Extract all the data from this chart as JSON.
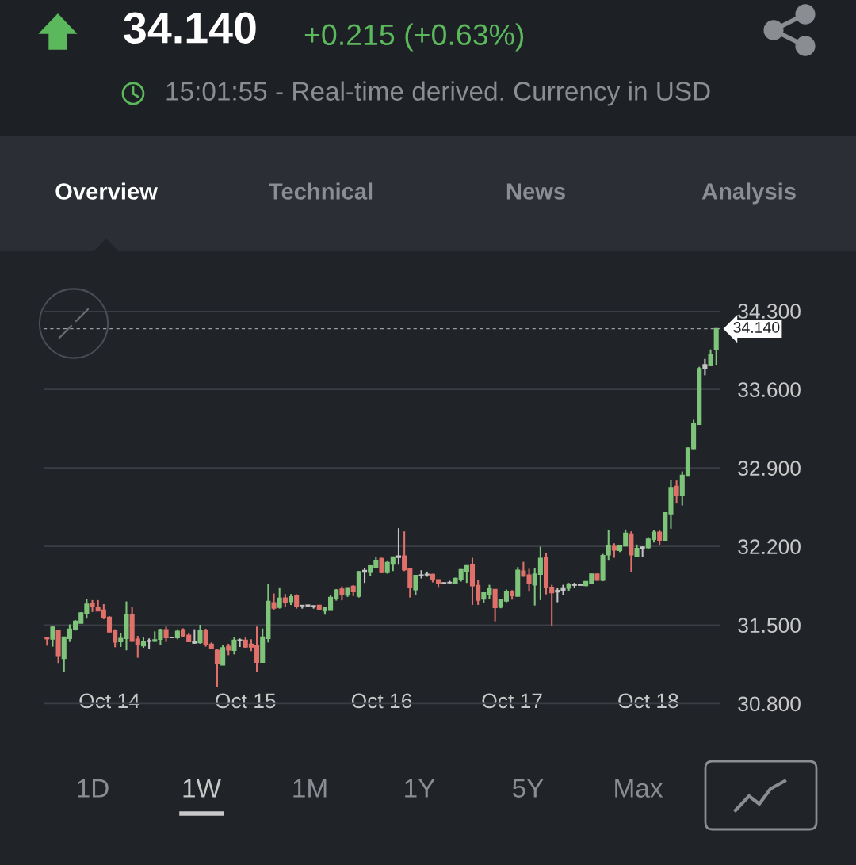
{
  "chart_data": {
    "type": "candlestick",
    "title": "34.140",
    "subtitle": "+0.215 (+0.63%)",
    "annotations": [
      "15:01:55 - Real-time derived. Currency in USD",
      "Overview",
      "Technical",
      "News",
      "Analysis",
      "1D",
      "1W",
      "1M",
      "1Y",
      "5Y",
      "Max"
    ],
    "categories": [
      null,
      null,
      null,
      null,
      null,
      null,
      null,
      null,
      null,
      null,
      null,
      "Oct 14",
      null,
      null,
      null,
      null,
      null,
      null,
      null,
      null,
      null,
      null,
      null,
      null,
      null,
      null,
      null,
      null,
      null,
      null,
      null,
      null,
      null,
      null,
      null,
      "Oct 15",
      null,
      null,
      null,
      null,
      null,
      null,
      null,
      null,
      null,
      null,
      null,
      null,
      null,
      null,
      null,
      null,
      null,
      null,
      null,
      null,
      null,
      null,
      null,
      "Oct 16",
      null,
      null,
      null,
      null,
      null,
      null,
      null,
      null,
      null,
      null,
      null,
      null,
      null,
      null,
      null,
      null,
      null,
      null,
      null,
      null,
      null,
      null,
      "Oct 17",
      null,
      null,
      null,
      null,
      null,
      null,
      null,
      null,
      null,
      null,
      null,
      null,
      null,
      null,
      null,
      null,
      null,
      null,
      null,
      null,
      null,
      null,
      null,
      "Oct 18",
      null,
      null,
      null,
      null,
      null,
      null,
      null,
      null,
      null,
      null,
      null,
      null
    ],
    "ohlc": [
      [
        31.384,
        31.392,
        31.316,
        31.378
      ],
      [
        31.375,
        31.491,
        31.307,
        31.481
      ],
      [
        31.451,
        31.455,
        31.161,
        31.222
      ],
      [
        31.203,
        31.395,
        31.085,
        31.392
      ],
      [
        31.38,
        31.505,
        31.349,
        31.462
      ],
      [
        31.458,
        31.545,
        31.45,
        31.533
      ],
      [
        31.517,
        31.615,
        31.515,
        31.608
      ],
      [
        31.604,
        31.733,
        31.557,
        31.686
      ],
      [
        31.691,
        31.722,
        31.616,
        31.663
      ],
      [
        31.658,
        31.722,
        31.622,
        31.627
      ],
      [
        31.632,
        31.686,
        31.552,
        31.568
      ],
      [
        31.568,
        31.58,
        31.434,
        31.439
      ],
      [
        31.446,
        31.462,
        31.302,
        31.349
      ],
      [
        31.352,
        31.427,
        31.304,
        31.38
      ],
      [
        31.38,
        31.71,
        31.274,
        31.592
      ],
      [
        31.592,
        31.663,
        31.35,
        31.356
      ],
      [
        31.373,
        31.403,
        31.208,
        31.326
      ],
      [
        31.316,
        31.392,
        31.297,
        31.354
      ],
      [
        31.355,
        31.38,
        31.286,
        31.36
      ],
      [
        31.356,
        31.443,
        31.349,
        31.368
      ],
      [
        31.373,
        31.467,
        31.321,
        31.458
      ],
      [
        31.458,
        31.486,
        31.349,
        31.387
      ],
      [
        31.39,
        31.392,
        31.387,
        31.388
      ],
      [
        31.387,
        31.462,
        31.373,
        31.443
      ],
      [
        31.458,
        31.47,
        31.39,
        31.403
      ],
      [
        31.408,
        31.427,
        31.349,
        31.352
      ],
      [
        31.34,
        31.462,
        31.333,
        31.349
      ],
      [
        31.344,
        31.502,
        31.333,
        31.448
      ],
      [
        31.45,
        31.467,
        31.307,
        31.326
      ],
      [
        31.328,
        31.345,
        31.285,
        31.29
      ],
      [
        31.274,
        31.285,
        30.948,
        31.156
      ],
      [
        31.144,
        31.321,
        31.14,
        31.297
      ],
      [
        31.309,
        31.333,
        31.231,
        31.278
      ],
      [
        31.274,
        31.392,
        31.238,
        31.363
      ],
      [
        31.365,
        31.38,
        31.304,
        31.366
      ],
      [
        31.363,
        31.392,
        31.297,
        31.304
      ],
      [
        31.328,
        31.373,
        31.267,
        31.304
      ],
      [
        31.314,
        31.486,
        31.085,
        31.168
      ],
      [
        31.168,
        31.469,
        31.165,
        31.392
      ],
      [
        31.38,
        31.868,
        31.344,
        31.71
      ],
      [
        31.698,
        31.781,
        31.632,
        31.651
      ],
      [
        31.658,
        31.835,
        31.646,
        31.738
      ],
      [
        31.74,
        31.776,
        31.66,
        31.705
      ],
      [
        31.71,
        31.776,
        31.678,
        31.75
      ],
      [
        31.764,
        31.774,
        31.646,
        31.663
      ],
      [
        31.674,
        31.675,
        31.646,
        31.672
      ],
      [
        31.677,
        31.68,
        31.665,
        31.671
      ],
      [
        31.67,
        31.675,
        31.646,
        31.668
      ],
      [
        31.674,
        31.68,
        31.635,
        31.639
      ],
      [
        31.627,
        31.66,
        31.592,
        31.656
      ],
      [
        31.632,
        31.769,
        31.627,
        31.745
      ],
      [
        31.74,
        31.82,
        31.717,
        31.811
      ],
      [
        31.82,
        31.844,
        31.72,
        31.773
      ],
      [
        31.768,
        31.835,
        31.75,
        31.832
      ],
      [
        31.844,
        31.856,
        31.757,
        31.797
      ],
      [
        31.757,
        31.98,
        31.745,
        31.974
      ],
      [
        31.972,
        32.009,
        31.875,
        31.986
      ],
      [
        31.97,
        32.04,
        31.938,
        32.028
      ],
      [
        32.016,
        32.108,
        32.009,
        32.075
      ],
      [
        32.092,
        32.1,
        31.962,
        31.969
      ],
      [
        31.969,
        32.075,
        31.957,
        32.056
      ],
      [
        32.05,
        32.11,
        31.981,
        32.106
      ],
      [
        32.103,
        32.363,
        32.044,
        32.115
      ],
      [
        32.115,
        32.334,
        31.98,
        31.993
      ],
      [
        32.004,
        32.009,
        31.745,
        31.839
      ],
      [
        31.816,
        31.946,
        31.769,
        31.941
      ],
      [
        31.94,
        31.988,
        31.915,
        31.945
      ],
      [
        31.948,
        31.976,
        31.93,
        31.952
      ],
      [
        31.95,
        31.957,
        31.88,
        31.903
      ],
      [
        31.903,
        31.905,
        31.839,
        31.87
      ],
      [
        31.876,
        31.879,
        31.868,
        31.87
      ],
      [
        31.877,
        31.894,
        31.863,
        31.879
      ],
      [
        31.875,
        31.922,
        31.87,
        31.915
      ],
      [
        31.91,
        31.998,
        31.887,
        31.993
      ],
      [
        31.98,
        32.04,
        31.875,
        32.035
      ],
      [
        32.04,
        32.099,
        31.679,
        31.851
      ],
      [
        31.851,
        31.898,
        31.679,
        31.722
      ],
      [
        31.733,
        31.792,
        31.698,
        31.785
      ],
      [
        31.773,
        31.858,
        31.733,
        31.821
      ],
      [
        31.816,
        31.82,
        31.533,
        31.656
      ],
      [
        31.66,
        31.733,
        31.649,
        31.729
      ],
      [
        31.715,
        31.816,
        31.703,
        31.792
      ],
      [
        31.792,
        31.811,
        31.726,
        31.762
      ],
      [
        31.757,
        32.016,
        31.755,
        31.988
      ],
      [
        31.98,
        32.063,
        31.929,
        31.938
      ],
      [
        31.945,
        32.0,
        31.797,
        31.868
      ],
      [
        31.858,
        32.009,
        31.674,
        31.953
      ],
      [
        31.953,
        32.198,
        31.722,
        32.094
      ],
      [
        32.099,
        32.141,
        31.773,
        31.835
      ],
      [
        31.835,
        31.858,
        31.491,
        31.788
      ],
      [
        31.795,
        31.83,
        31.703,
        31.807
      ],
      [
        31.81,
        31.858,
        31.77,
        31.83
      ],
      [
        31.83,
        31.875,
        31.8,
        31.856
      ],
      [
        31.855,
        31.877,
        31.83,
        31.858
      ],
      [
        31.861,
        31.864,
        31.853,
        31.855
      ],
      [
        31.853,
        31.891,
        31.846,
        31.887
      ],
      [
        31.875,
        31.957,
        31.868,
        31.953
      ],
      [
        31.953,
        31.957,
        31.895,
        31.9
      ],
      [
        31.9,
        32.134,
        31.89,
        32.118
      ],
      [
        32.127,
        32.346,
        32.08,
        32.205
      ],
      [
        32.2,
        32.228,
        32.099,
        32.169
      ],
      [
        32.165,
        32.216,
        32.15,
        32.209
      ],
      [
        32.205,
        32.351,
        32.2,
        32.318
      ],
      [
        32.311,
        32.335,
        31.969,
        32.127
      ],
      [
        32.11,
        32.217,
        32.105,
        32.181
      ],
      [
        32.18,
        32.198,
        32.103,
        32.193
      ],
      [
        32.19,
        32.283,
        32.181,
        32.264
      ],
      [
        32.264,
        32.346,
        32.235,
        32.327
      ],
      [
        32.327,
        32.346,
        32.209,
        32.257
      ],
      [
        32.257,
        32.504,
        32.252,
        32.499
      ],
      [
        32.492,
        32.794,
        32.358,
        32.723
      ],
      [
        32.735,
        32.787,
        32.582,
        32.653
      ],
      [
        32.653,
        32.869,
        32.565,
        32.834
      ],
      [
        32.834,
        33.08,
        32.83,
        33.077
      ],
      [
        33.073,
        33.329,
        33.066,
        33.294
      ],
      [
        33.289,
        33.8,
        33.282,
        33.784
      ],
      [
        33.79,
        33.871,
        33.725,
        33.819
      ],
      [
        33.814,
        33.956,
        33.81,
        33.909
      ],
      [
        33.954,
        34.145,
        33.819,
        34.14
      ]
    ],
    "colors": [
      "#e0706a",
      "#7ec47a",
      "#e0706a",
      "#7ec47a",
      "#7ec47a",
      "#7ec47a",
      "#7ec47a",
      "#7ec47a",
      "#e0706a",
      "#e0706a",
      "#e0706a",
      "#e0706a",
      "#e0706a",
      "#7ec47a",
      "#7ec47a",
      "#e0706a",
      "#e0706a",
      "#7ec47a",
      "#c4c4c4",
      "#7ec47a",
      "#7ec47a",
      "#e0706a",
      "#c4c4c4",
      "#7ec47a",
      "#e0706a",
      "#e0706a",
      "#c4c4c4",
      "#7ec47a",
      "#e0706a",
      "#e0706a",
      "#e0706a",
      "#7ec47a",
      "#e0706a",
      "#7ec47a",
      "#c4c4c4",
      "#e0706a",
      "#e0706a",
      "#e0706a",
      "#7ec47a",
      "#7ec47a",
      "#e0706a",
      "#7ec47a",
      "#e0706a",
      "#7ec47a",
      "#e0706a",
      "#c4c4c4",
      "#c4c4c4",
      "#c4c4c4",
      "#e0706a",
      "#7ec47a",
      "#7ec47a",
      "#7ec47a",
      "#e0706a",
      "#7ec47a",
      "#e0706a",
      "#7ec47a",
      "#c4c4c4",
      "#7ec47a",
      "#7ec47a",
      "#e0706a",
      "#7ec47a",
      "#7ec47a",
      "#c4c4c4",
      "#e0706a",
      "#e0706a",
      "#7ec47a",
      "#c4c4c4",
      "#c4c4c4",
      "#e0706a",
      "#e0706a",
      "#c4c4c4",
      "#c4c4c4",
      "#7ec47a",
      "#7ec47a",
      "#7ec47a",
      "#e0706a",
      "#e0706a",
      "#7ec47a",
      "#7ec47a",
      "#e0706a",
      "#7ec47a",
      "#7ec47a",
      "#e0706a",
      "#7ec47a",
      "#e0706a",
      "#e0706a",
      "#7ec47a",
      "#7ec47a",
      "#e0706a",
      "#e0706a",
      "#c4c4c4",
      "#c4c4c4",
      "#7ec47a",
      "#c4c4c4",
      "#c4c4c4",
      "#7ec47a",
      "#7ec47a",
      "#e0706a",
      "#7ec47a",
      "#7ec47a",
      "#e0706a",
      "#7ec47a",
      "#7ec47a",
      "#e0706a",
      "#7ec47a",
      "#c4c4c4",
      "#7ec47a",
      "#7ec47a",
      "#e0706a",
      "#7ec47a",
      "#7ec47a",
      "#e0706a",
      "#7ec47a",
      "#7ec47a",
      "#7ec47a",
      "#7ec47a",
      "#c4c4c4",
      "#7ec47a",
      "#7ec47a"
    ],
    "ylim": [
      30.64,
      34.3
    ],
    "yticks": [
      {
        "value": 30.8,
        "label": "30.800"
      },
      {
        "value": 31.5,
        "label": "31.500"
      },
      {
        "value": 32.2,
        "label": "32.200"
      },
      {
        "value": 32.9,
        "label": "32.900"
      },
      {
        "value": 33.6,
        "label": "33.600"
      },
      {
        "value": 34.3,
        "label": "34.300"
      }
    ],
    "grid": "y",
    "ref_lines": [
      {
        "axis": "y",
        "value": 34.14,
        "label": "34.140",
        "color": "#9a9da2",
        "line_style": "dashed"
      }
    ]
  }
}
